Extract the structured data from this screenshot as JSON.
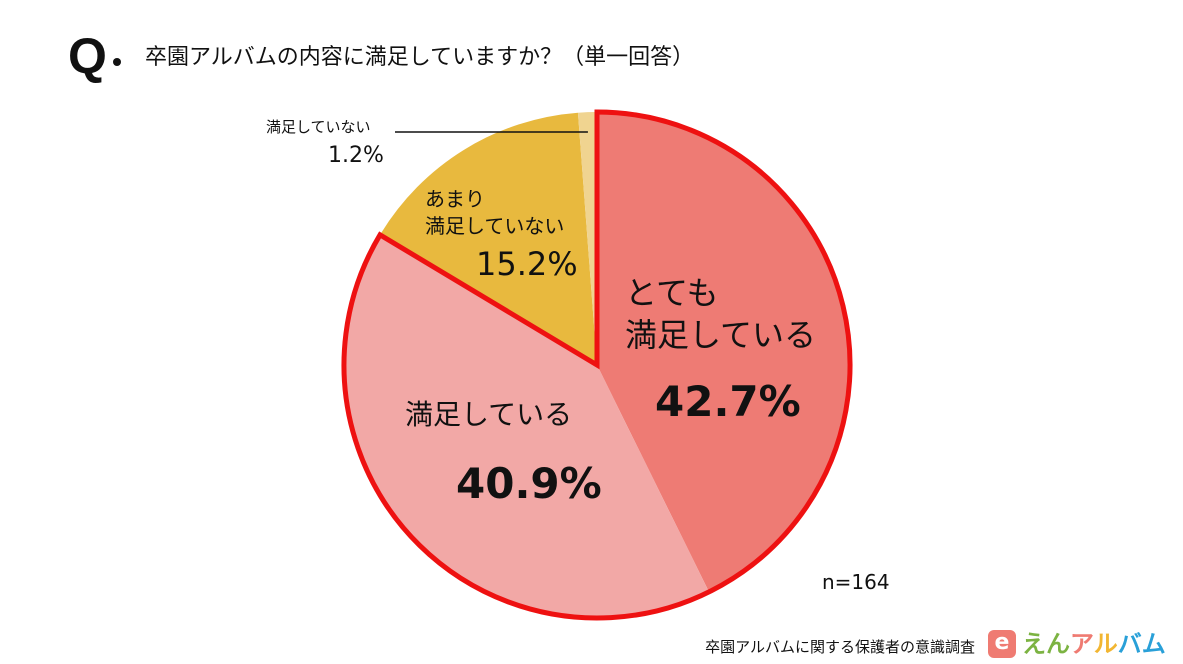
{
  "question_mark": "Q",
  "title": "卒園アルバムの内容に満足していますか？（単一回答）",
  "chart_data": {
    "type": "pie",
    "title": "卒園アルバムの内容に満足していますか？（単一回答）",
    "slices": [
      {
        "label": "とても満足している",
        "label_lines": [
          "とても",
          "満足している"
        ],
        "value": 42.7,
        "pct_text": "42.7%",
        "color": "#ee7b74"
      },
      {
        "label": "満足している",
        "label_lines": [
          "満足している"
        ],
        "value": 40.9,
        "pct_text": "40.9%",
        "color": "#f2a8a6"
      },
      {
        "label": "あまり満足していない",
        "label_lines": [
          "あまり",
          "満足していない"
        ],
        "value": 15.2,
        "pct_text": "15.2%",
        "color": "#e8b93e"
      },
      {
        "label": "満足していない",
        "label_lines": [
          "満足していない"
        ],
        "value": 1.2,
        "pct_text": "1.2%",
        "color": "#f0d490"
      }
    ],
    "highlight_color": "#ee1111",
    "start": "top",
    "direction": "clockwise"
  },
  "sample_size": "n=164",
  "footer": {
    "survey": "卒園アルバムに関する保護者の意識調査",
    "logo_mark": "e",
    "logo_text": "えんアルバム"
  }
}
